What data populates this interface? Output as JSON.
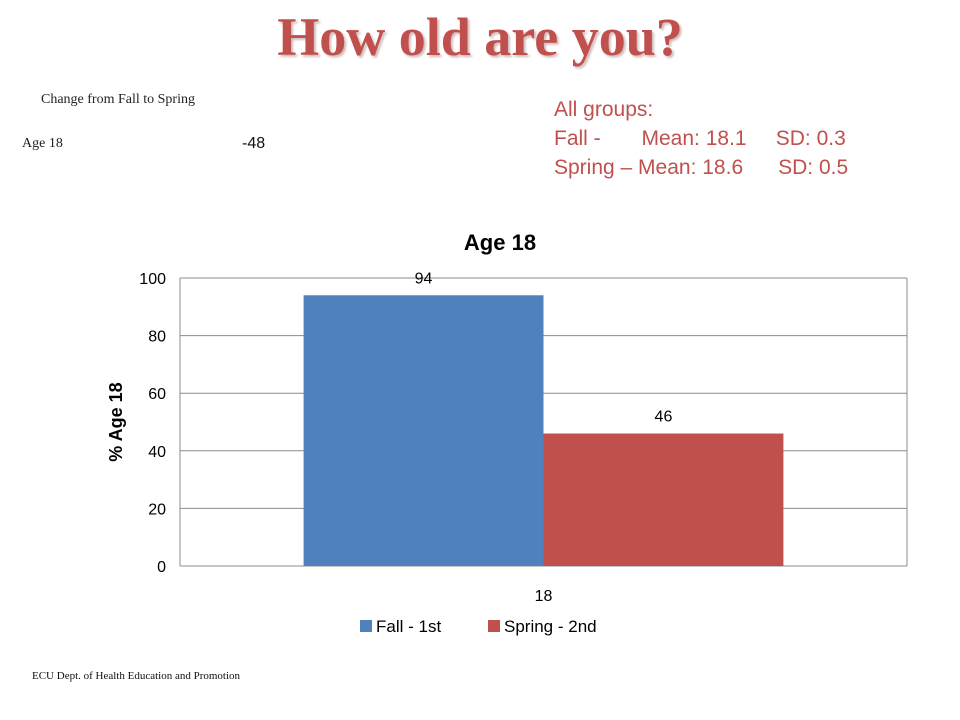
{
  "slide": {
    "title": "How old are you?",
    "change_header": "Change  from Fall to Spring",
    "change_row_label": "Age 18",
    "change_row_value": "-48",
    "summary": {
      "line1": "All groups:",
      "line2": "Fall -       Mean: 18.1     SD: 0.3",
      "line3": "Spring – Mean: 18.6      SD: 0.5"
    },
    "footer": "ECU Dept. of Health Education and Promotion"
  },
  "colors": {
    "title": "#c0504d",
    "summary_text": "#c0504d",
    "fall_series": "#4f81bd",
    "spring_series": "#c0504d",
    "gridline": "#8c8c8c"
  },
  "chart_data": {
    "type": "bar",
    "title": "Age 18",
    "xlabel": "",
    "ylabel": "% Age 18",
    "categories": [
      "18"
    ],
    "series": [
      {
        "name": "Fall - 1st",
        "values": [
          94
        ],
        "color": "#4f81bd"
      },
      {
        "name": "Spring - 2nd",
        "values": [
          46
        ],
        "color": "#c0504d"
      }
    ],
    "ylim": [
      0,
      100
    ],
    "yticks": [
      0,
      20,
      40,
      60,
      80,
      100
    ],
    "grid": true,
    "data_labels": true,
    "legend_position": "bottom"
  }
}
